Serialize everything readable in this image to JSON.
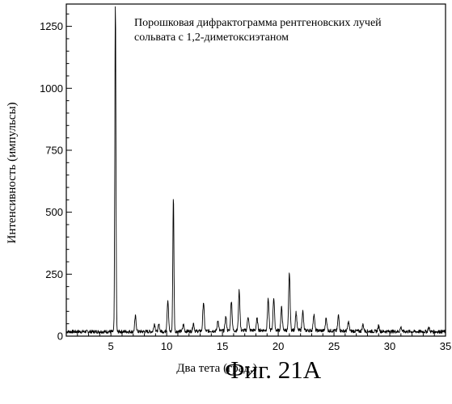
{
  "figure_caption": "Фиг. 21А",
  "chart_data": {
    "type": "line",
    "title_lines": [
      "Порошковая дифрактограмма рентгеновских лучей",
      "сольвата с 1,2-диметоксиэтаном"
    ],
    "xlabel": "Два тета (град.)",
    "ylabel": "Интенсивность (импульсы)",
    "xlim": [
      1,
      35
    ],
    "ylim": [
      0,
      1340
    ],
    "xticks": [
      5,
      10,
      15,
      20,
      25,
      30,
      35
    ],
    "yticks": [
      0,
      250,
      500,
      750,
      1000,
      1250
    ],
    "grid": false,
    "legend": "none",
    "line_color": "#000000",
    "baseline": 18,
    "peaks": [
      {
        "x": 5.4,
        "y": 1340
      },
      {
        "x": 7.2,
        "y": 80
      },
      {
        "x": 8.9,
        "y": 50
      },
      {
        "x": 9.3,
        "y": 45
      },
      {
        "x": 10.1,
        "y": 145
      },
      {
        "x": 10.6,
        "y": 560
      },
      {
        "x": 11.5,
        "y": 45
      },
      {
        "x": 12.4,
        "y": 50
      },
      {
        "x": 13.3,
        "y": 135
      },
      {
        "x": 14.6,
        "y": 60
      },
      {
        "x": 15.3,
        "y": 75
      },
      {
        "x": 15.8,
        "y": 140
      },
      {
        "x": 16.5,
        "y": 180
      },
      {
        "x": 17.3,
        "y": 75
      },
      {
        "x": 18.1,
        "y": 65
      },
      {
        "x": 19.1,
        "y": 145
      },
      {
        "x": 19.6,
        "y": 150
      },
      {
        "x": 20.3,
        "y": 110
      },
      {
        "x": 21.0,
        "y": 250
      },
      {
        "x": 21.6,
        "y": 90
      },
      {
        "x": 22.2,
        "y": 95
      },
      {
        "x": 23.2,
        "y": 85
      },
      {
        "x": 24.3,
        "y": 70
      },
      {
        "x": 25.4,
        "y": 80
      },
      {
        "x": 26.3,
        "y": 55
      },
      {
        "x": 27.6,
        "y": 45
      },
      {
        "x": 29.0,
        "y": 40
      },
      {
        "x": 31.0,
        "y": 35
      },
      {
        "x": 33.5,
        "y": 35
      }
    ]
  }
}
